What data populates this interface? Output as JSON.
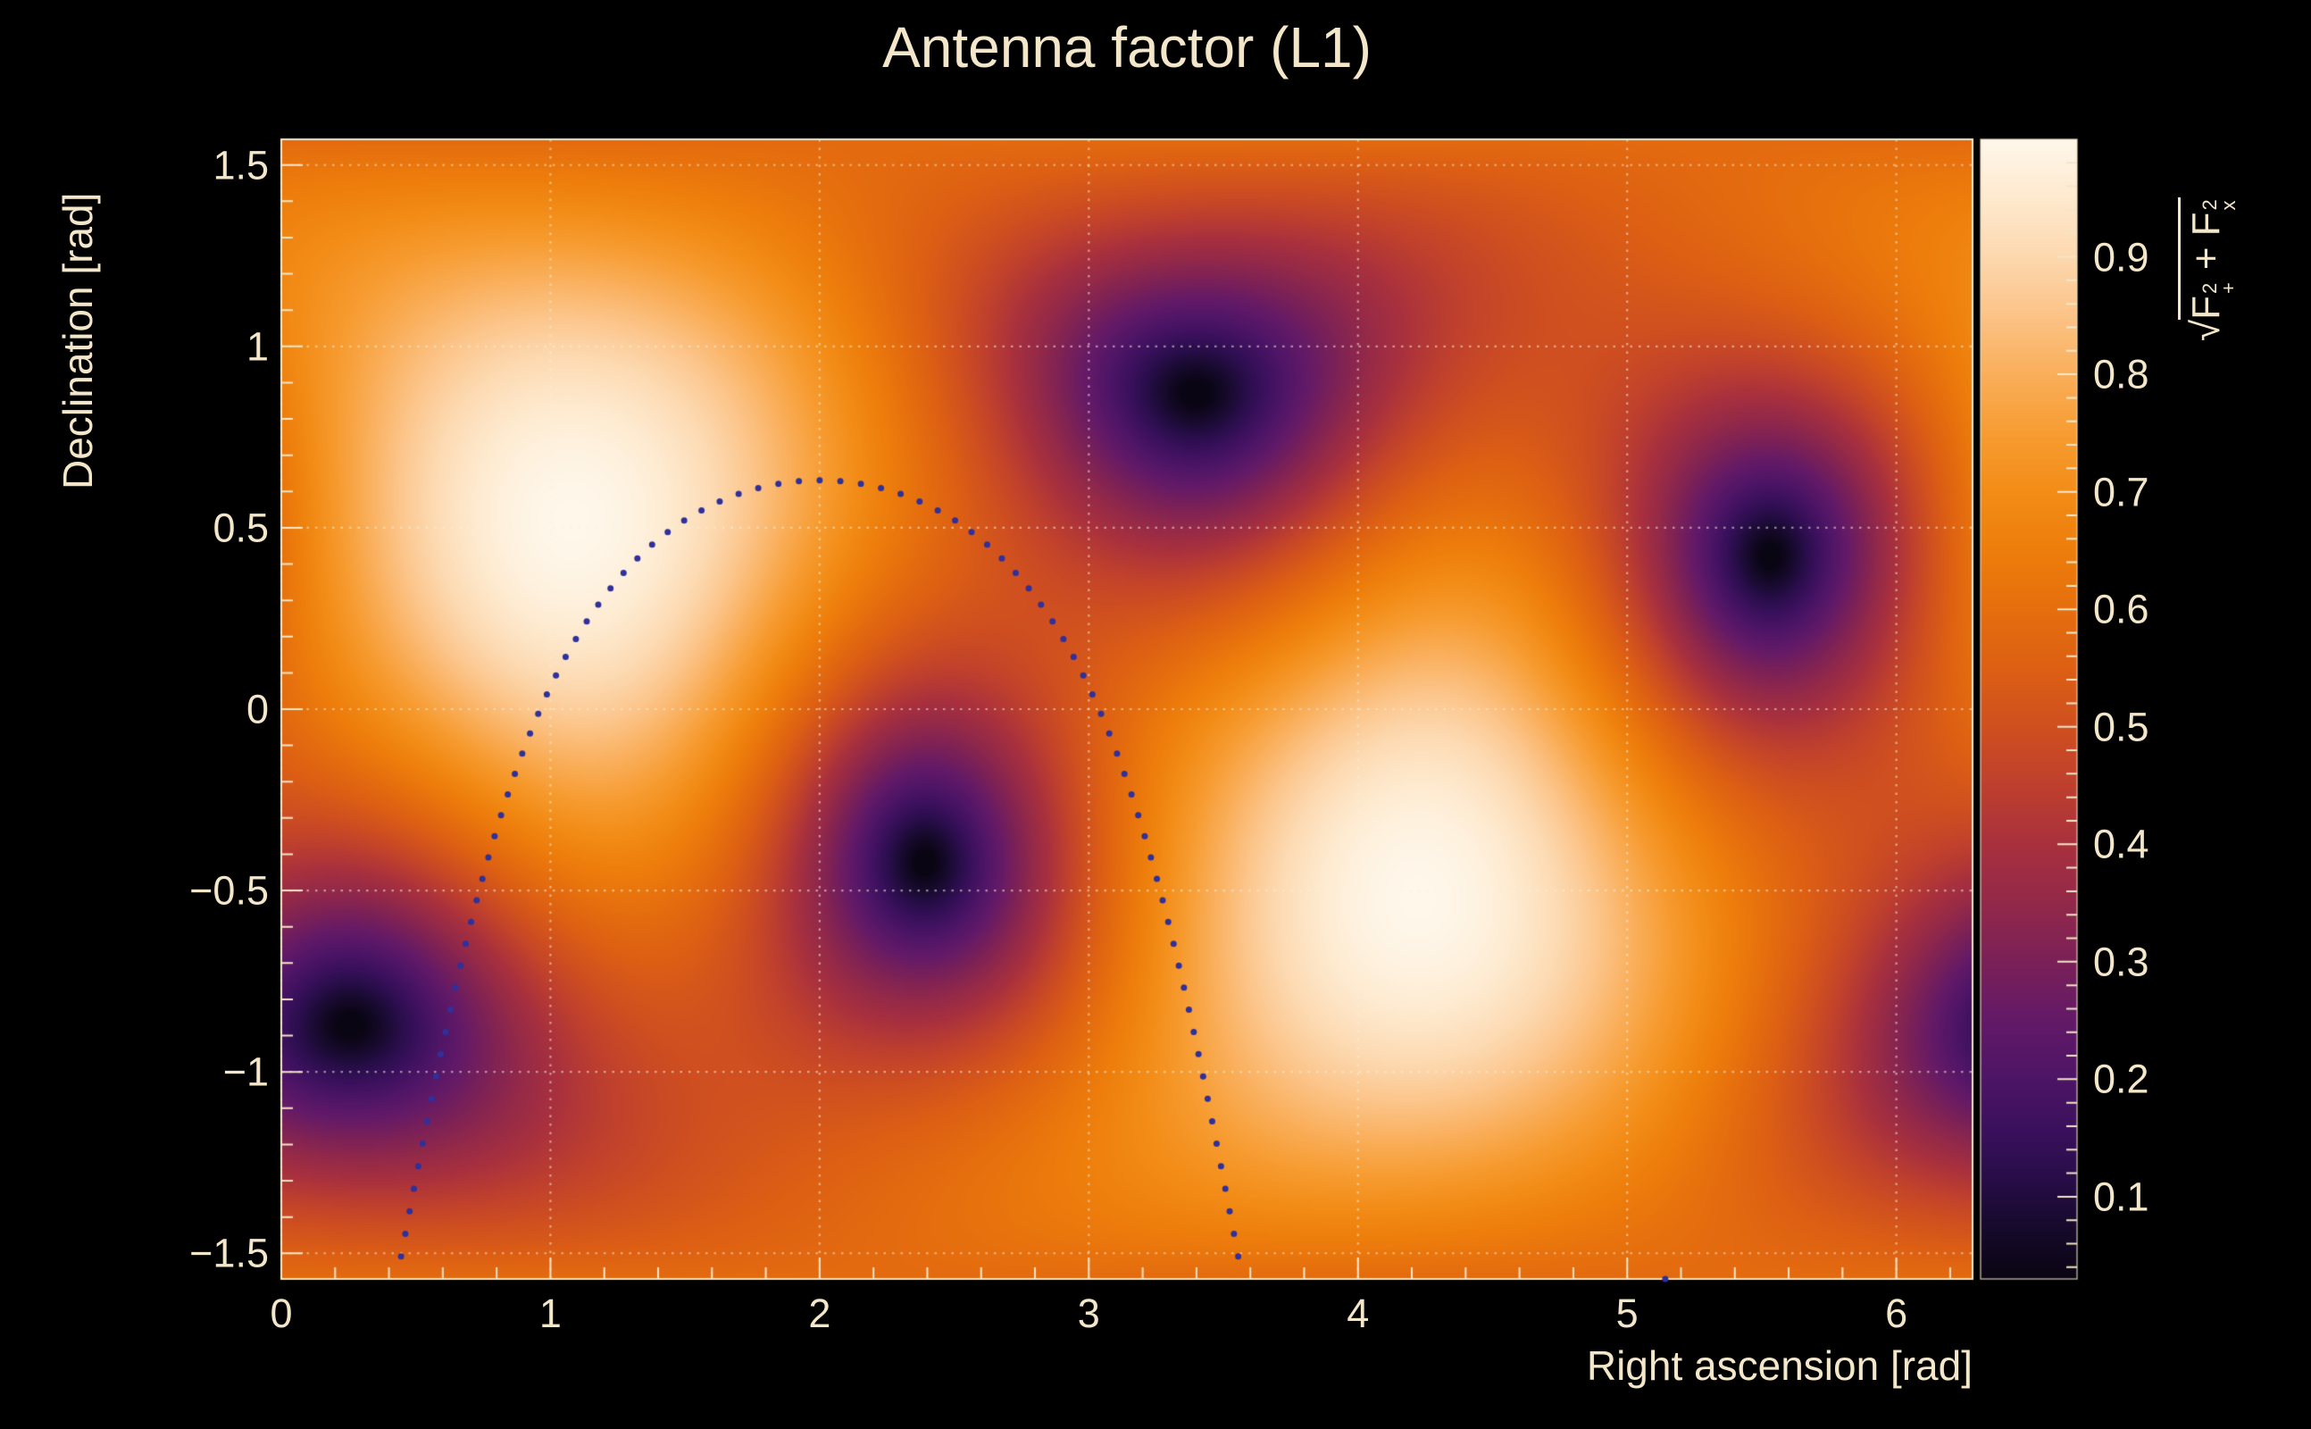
{
  "figure": {
    "background": "#000000"
  },
  "chart_data": {
    "type": "heatmap",
    "title": "Antenna factor (L1)",
    "xlabel": "Right ascension [rad]",
    "ylabel": "Declination [rad]",
    "zlabel": "√(F₊² + Fₓ²)",
    "quantity": "sqrt(Fplus^2 + Fcross^2) antenna response of the L1 detector over the sky",
    "xlim": [
      0,
      6.28319
    ],
    "ylim": [
      -1.5708,
      1.5708
    ],
    "zlim": [
      0.03,
      1.0
    ],
    "x_ticks": [
      {
        "v": 0,
        "label": "0"
      },
      {
        "v": 1,
        "label": "1"
      },
      {
        "v": 2,
        "label": "2"
      },
      {
        "v": 3,
        "label": "3"
      },
      {
        "v": 4,
        "label": "4"
      },
      {
        "v": 5,
        "label": "5"
      },
      {
        "v": 6,
        "label": "6"
      }
    ],
    "y_ticks": [
      {
        "v": 1.5,
        "label": "1.5"
      },
      {
        "v": 1.0,
        "label": "1"
      },
      {
        "v": 0.5,
        "label": "0.5"
      },
      {
        "v": 0.0,
        "label": "0"
      },
      {
        "v": -0.5,
        "label": "−0.5"
      },
      {
        "v": -1.0,
        "label": "−1"
      },
      {
        "v": -1.5,
        "label": "−1.5"
      }
    ],
    "z_ticks": [
      {
        "v": 0.9,
        "label": "0.9"
      },
      {
        "v": 0.8,
        "label": "0.8"
      },
      {
        "v": 0.7,
        "label": "0.7"
      },
      {
        "v": 0.6,
        "label": "0.6"
      },
      {
        "v": 0.5,
        "label": "0.5"
      },
      {
        "v": 0.4,
        "label": "0.4"
      },
      {
        "v": 0.3,
        "label": "0.3"
      },
      {
        "v": 0.2,
        "label": "0.2"
      },
      {
        "v": 0.1,
        "label": "0.1"
      }
    ],
    "x_minor_step": 0.2,
    "y_minor_step": 0.1,
    "z_minor_step": 0.02,
    "grid": true,
    "grid_color": "rgba(250,242,224,0.55)",
    "axis_color": "#f3e6c9",
    "model": {
      "zenith": {
        "ra": 1.08,
        "dec": 0.52
      },
      "reference_null": {
        "ra": 3.4,
        "dec": 0.87
      },
      "maxima": [
        {
          "ra": 1.08,
          "dec": 0.52,
          "value": 1.0
        },
        {
          "ra": 4.22,
          "dec": -0.52,
          "value": 1.0
        }
      ],
      "nulls": [
        {
          "ra": 3.4,
          "dec": 0.87
        },
        {
          "ra": 5.53,
          "dec": 0.42
        },
        {
          "ra": 2.39,
          "dec": -0.42
        },
        {
          "ra": 0.26,
          "dec": -0.87
        }
      ]
    },
    "overlay_track": {
      "shape": "small-circle-on-sphere",
      "center": {
        "ra": 2.0,
        "dec": -0.47
      },
      "radius_rad": 1.1008,
      "n_dots": 90,
      "dot_radius_px": 3.5,
      "color": "#30309a"
    },
    "colormap": [
      [
        0.03,
        "#0a0513"
      ],
      [
        0.08,
        "#190b30"
      ],
      [
        0.12,
        "#2a0e4c"
      ],
      [
        0.16,
        "#3c115e"
      ],
      [
        0.2,
        "#4e1566"
      ],
      [
        0.25,
        "#631a68"
      ],
      [
        0.3,
        "#7b2158"
      ],
      [
        0.35,
        "#93294a"
      ],
      [
        0.4,
        "#a9313e"
      ],
      [
        0.45,
        "#bf402e"
      ],
      [
        0.5,
        "#d05020"
      ],
      [
        0.55,
        "#dd6014"
      ],
      [
        0.6,
        "#e66f0e"
      ],
      [
        0.65,
        "#ee7e0c"
      ],
      [
        0.7,
        "#f38d18"
      ],
      [
        0.75,
        "#f79d33"
      ],
      [
        0.8,
        "#faaf5b"
      ],
      [
        0.85,
        "#fcc488"
      ],
      [
        0.9,
        "#fdd9b0"
      ],
      [
        0.95,
        "#feeacf"
      ],
      [
        1.0,
        "#fff8ec"
      ]
    ]
  },
  "zlabel_parts": {
    "radical": "√",
    "term1_base": "F",
    "term1_sup": "2",
    "term1_sub": "+",
    "op": "+",
    "term2_base": "F",
    "term2_sup": "2",
    "term2_sub": "x"
  }
}
